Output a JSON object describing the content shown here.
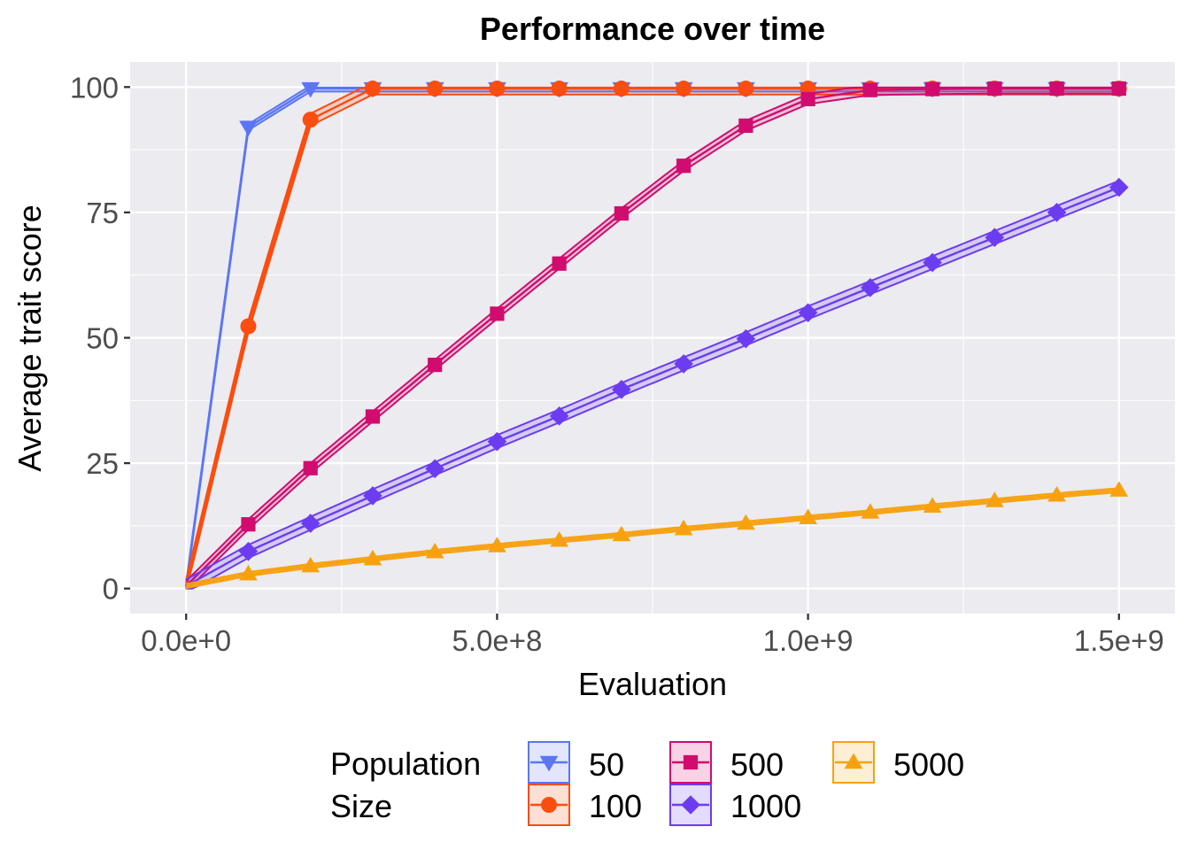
{
  "chart_data": {
    "type": "line",
    "title": "Performance over time",
    "xlabel": "Evaluation",
    "ylabel": "Average trait score",
    "xlim": [
      -90000000,
      1590000000
    ],
    "ylim": [
      -5,
      105
    ],
    "x_ticks": [
      0,
      500000000,
      1000000000,
      1500000000
    ],
    "x_tick_labels": [
      "0.0e+0",
      "5.0e+8",
      "1.0e+9",
      "1.5e+9"
    ],
    "y_ticks": [
      0,
      25,
      50,
      75,
      100
    ],
    "y_tick_labels": [
      "0",
      "25",
      "50",
      "75",
      "100"
    ],
    "grid": true,
    "legend": {
      "position": "bottom",
      "title_lines": [
        "Population",
        "Size"
      ]
    },
    "x": [
      0,
      100000000,
      200000000,
      300000000,
      400000000,
      500000000,
      600000000,
      700000000,
      800000000,
      900000000,
      1000000000,
      1100000000,
      1200000000,
      1300000000,
      1400000000,
      1500000000
    ],
    "series": [
      {
        "name": "50",
        "color": "#5B75F5",
        "marker": "triangle-down",
        "values": [
          0.5,
          92,
          99.7,
          99.7,
          99.7,
          99.7,
          99.7,
          99.7,
          99.7,
          99.7,
          99.7,
          99.7,
          99.7,
          99.7,
          99.7,
          99.7
        ],
        "band": 0.6
      },
      {
        "name": "100",
        "color": "#FA4D0F",
        "marker": "circle",
        "values": [
          0.5,
          52.3,
          93.5,
          99.7,
          99.7,
          99.7,
          99.7,
          99.7,
          99.7,
          99.7,
          99.7,
          99.7,
          99.7,
          99.7,
          99.7,
          99.7
        ],
        "band": 1.2
      },
      {
        "name": "500",
        "color": "#D10C6E",
        "marker": "square",
        "values": [
          0.5,
          12.8,
          24,
          34.3,
          44.6,
          54.8,
          64.8,
          74.8,
          84.3,
          92.3,
          97.6,
          99.4,
          99.6,
          99.7,
          99.7,
          99.7
        ],
        "band": 1.0
      },
      {
        "name": "1000",
        "color": "#6C3CF0",
        "marker": "diamond",
        "values": [
          0.5,
          7.4,
          13,
          18.5,
          23.9,
          29.3,
          34.4,
          39.7,
          44.8,
          49.8,
          55,
          60,
          65,
          70,
          75,
          80
        ],
        "band": 1.3
      },
      {
        "name": "5000",
        "color": "#F7A10F",
        "marker": "triangle-up",
        "values": [
          0.5,
          2.9,
          4.5,
          5.9,
          7.3,
          8.5,
          9.6,
          10.7,
          11.9,
          13,
          14.1,
          15.2,
          16.4,
          17.5,
          18.6,
          19.6
        ],
        "band": 0.4
      }
    ]
  }
}
